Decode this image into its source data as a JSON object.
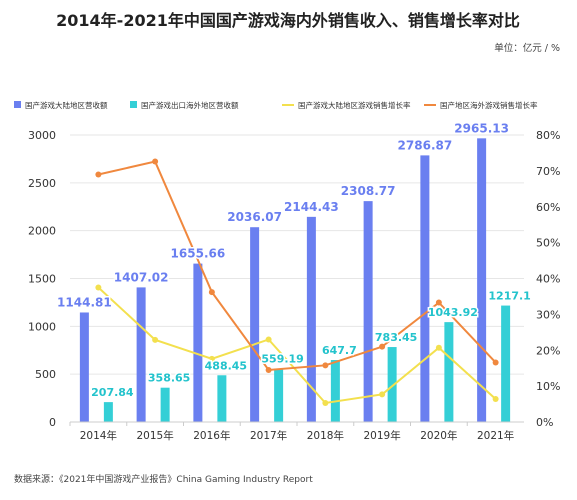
{
  "title": "2014年-2021年中国国产游戏海内外销售收入、销售增长率对比",
  "unit": "单位：亿元  /  %",
  "source": "数据来源：《2021年中国游戏产业报告》China Gaming Industry Report",
  "colors": {
    "mainland_bar": "#6a7ff0",
    "overseas_bar": "#34cfd6",
    "mainland_line": "#f3e04e",
    "overseas_line": "#f0883e",
    "mainland_label": "#6a7ff0",
    "overseas_label": "#23c3cc",
    "grid": "#e6e6e6",
    "text": "#333333"
  },
  "chart_data": {
    "type": "bar",
    "title": "2014年-2021年中国国产游戏海内外销售收入、销售增长率对比",
    "categories": [
      "2014年",
      "2015年",
      "2016年",
      "2017年",
      "2018年",
      "2019年",
      "2020年",
      "2021年"
    ],
    "series": [
      {
        "name": "国产游戏大陆地区营收额",
        "type": "bar",
        "axis": "left",
        "values": [
          1144.81,
          1407.02,
          1655.66,
          2036.07,
          2144.43,
          2308.77,
          2786.87,
          2965.13
        ],
        "labels": [
          "1144.81",
          "1407.02",
          "1655.66",
          "2036.07",
          "2144.43",
          "2308.77",
          "2786.87",
          "2965.13"
        ]
      },
      {
        "name": "国产游戏出口海外地区营收额",
        "type": "bar",
        "axis": "left",
        "values": [
          207.84,
          358.65,
          488.45,
          559.19,
          647.7,
          783.45,
          1043.92,
          1217.1
        ],
        "labels": [
          "207.84",
          "358.65",
          "488.45",
          "559.19",
          "647.7",
          "783.45",
          "1043.92",
          "1217.1"
        ]
      },
      {
        "name": "国产游戏大陆地区游戏销售增长率",
        "type": "line",
        "axis": "right",
        "values": [
          37.5,
          22.9,
          17.6,
          23.0,
          5.3,
          7.7,
          20.7,
          6.4
        ]
      },
      {
        "name": "国产地区海外游戏销售增长率",
        "type": "line",
        "axis": "right",
        "values": [
          69.0,
          72.6,
          36.2,
          14.5,
          15.8,
          21.0,
          33.3,
          16.6
        ]
      }
    ],
    "left_axis": {
      "min": 0,
      "max": 3000,
      "ticks": [
        "0",
        "500",
        "1000",
        "1500",
        "2000",
        "2500",
        "3000"
      ]
    },
    "right_axis": {
      "min": 0,
      "max": 80,
      "ticks": [
        "0%",
        "10%",
        "20%",
        "30%",
        "40%",
        "50%",
        "60%",
        "70%",
        "80%"
      ]
    },
    "legend_position": "top",
    "grid": true
  }
}
